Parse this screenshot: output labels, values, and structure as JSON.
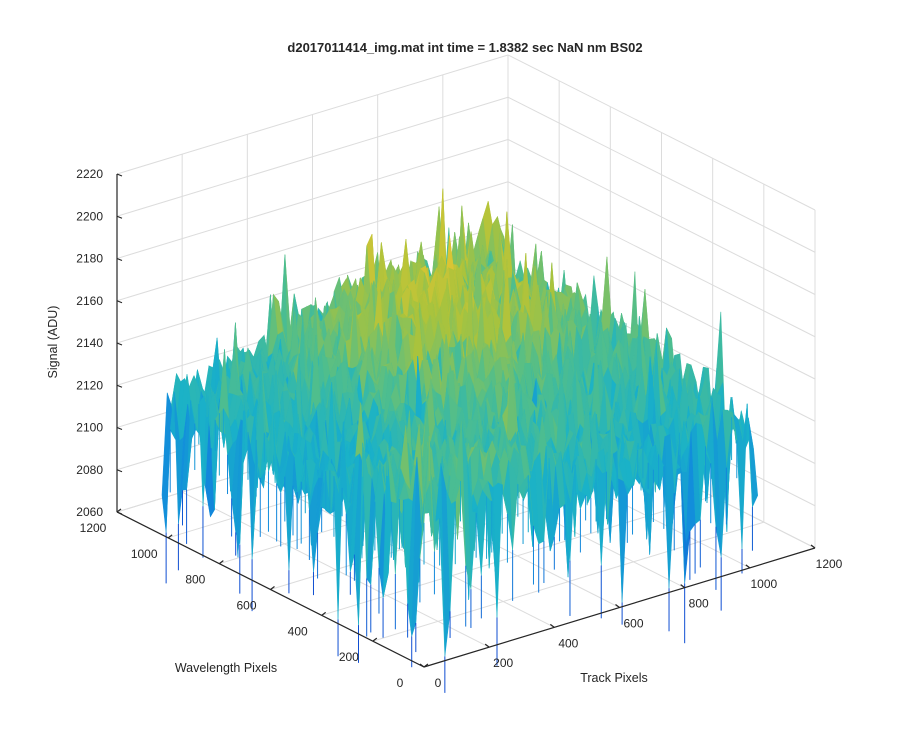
{
  "chart_data": {
    "type": "surface",
    "title": "d2017011414_img.mat int time = 1.8382 sec  NaN nm BS02",
    "xlabel": "Track Pixels",
    "ylabel": "Wavelength Pixels",
    "zlabel": "Signal (ADU)",
    "xlim": [
      0,
      1200
    ],
    "ylim": [
      0,
      1200
    ],
    "zlim": [
      2060,
      2220
    ],
    "xticks": [
      "0",
      "200",
      "400",
      "600",
      "800",
      "1000",
      "1200"
    ],
    "yticks": [
      "0",
      "200",
      "400",
      "600",
      "800",
      "1000",
      "1200"
    ],
    "zticks": [
      "2060",
      "2080",
      "2100",
      "2120",
      "2140",
      "2160",
      "2180",
      "2200",
      "2220"
    ],
    "grid": true,
    "colormap": "parula",
    "data_extent": {
      "x": [
        0,
        1024
      ],
      "y": [
        0,
        1024
      ]
    },
    "signal_profile": {
      "approx_range": [
        2060,
        2205
      ],
      "typical_level": 2130,
      "features": [
        "elevated yellow ridge ~2165-2185 across the middle and back of the sensor",
        "spike near track 1000, wavelength 1000 reaching ~2205",
        "deep noisy dips to ~2060-2080 along front edges",
        "broad low trough at low track / mid wavelength"
      ]
    },
    "colors": {
      "low": "#0f5edb",
      "mid_low": "#1aa9d6",
      "mid": "#36b89a",
      "mid_high": "#a8c138",
      "high": "#f0c530"
    }
  }
}
